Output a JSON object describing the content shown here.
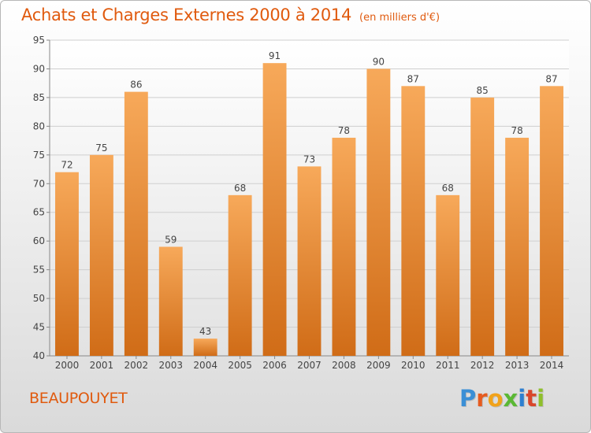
{
  "title": "Achats et Charges Externes 2000 à 2014",
  "subtitle": "(en milliers d'€)",
  "commune": "BEAUPOUYET",
  "brand": {
    "text": "Proxiti",
    "letters": [
      "P",
      "r",
      "o",
      "x",
      "i",
      "t",
      "i"
    ],
    "colors": [
      "#3a8fd6",
      "#e65b1f",
      "#f1a21a",
      "#5ab834",
      "#2d7fd0",
      "#d9462b",
      "#8fbf2b"
    ]
  },
  "colors": {
    "accent": "#e05a0e",
    "bar_top": "#f7a95a",
    "bar_bottom": "#d06c17"
  },
  "chart_data": {
    "type": "bar",
    "categories": [
      "2000",
      "2001",
      "2002",
      "2003",
      "2004",
      "2005",
      "2006",
      "2007",
      "2008",
      "2009",
      "2010",
      "2011",
      "2012",
      "2013",
      "2014"
    ],
    "values": [
      72,
      75,
      86,
      59,
      43,
      68,
      91,
      73,
      78,
      90,
      87,
      68,
      85,
      78,
      87
    ],
    "ylim": [
      40,
      95
    ],
    "yticks": [
      40,
      45,
      50,
      55,
      60,
      65,
      70,
      75,
      80,
      85,
      90,
      95
    ],
    "grid": true,
    "data_labels": true
  }
}
